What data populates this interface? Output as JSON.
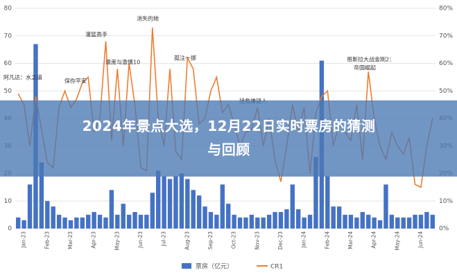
{
  "chart_data": {
    "type": "bar-line",
    "title": "2024年景点大选，12月22日实时票房的猜测与回顾",
    "categories": [
      null,
      "Jan-23",
      null,
      null,
      null,
      "Feb-23",
      null,
      null,
      null,
      "Mar-23",
      null,
      null,
      null,
      "Apr-23",
      null,
      null,
      null,
      "May-23",
      null,
      null,
      null,
      "Jun-23",
      null,
      null,
      null,
      "Jul-23",
      null,
      null,
      null,
      "Aug-23",
      null,
      null,
      null,
      "Sep-23",
      null,
      null,
      null,
      "Oct-23",
      null,
      null,
      null,
      "Nov-23",
      null,
      null,
      null,
      "Dec-23",
      null,
      null,
      null,
      "Jan-24",
      null,
      null,
      null,
      "Feb-24",
      null,
      null,
      null,
      "Mar-24",
      null,
      null,
      null,
      "Apr-24",
      null,
      null,
      null,
      "May-24",
      null,
      null,
      null,
      "Jun-24",
      null,
      null
    ],
    "series": [
      {
        "name": "票房（亿元）",
        "color": "#4472c4",
        "kind": "bar",
        "axis": "y",
        "values": [
          4,
          3,
          16,
          67,
          24,
          10,
          8,
          5,
          4,
          3,
          4,
          4,
          5,
          6,
          5,
          4,
          14,
          5,
          9,
          5,
          6,
          5,
          5,
          13,
          21,
          19,
          18,
          19,
          20,
          18,
          14,
          12,
          8,
          6,
          5,
          16,
          9,
          5,
          4,
          4,
          5,
          4,
          4,
          5,
          6,
          6,
          7,
          16,
          7,
          4,
          5,
          26,
          61,
          19,
          8,
          8,
          5,
          5,
          4,
          6,
          5,
          4,
          3,
          16,
          5,
          4,
          4,
          4,
          5,
          5,
          6,
          5
        ]
      },
      {
        "name": "CR1",
        "color": "#ed7d31",
        "kind": "line",
        "axis": "y2",
        "values": [
          49,
          45,
          30,
          48,
          36,
          24,
          22,
          44,
          50,
          44,
          47,
          53,
          55,
          35,
          40,
          68,
          32,
          58,
          30,
          60,
          45,
          22,
          21,
          73,
          40,
          30,
          58,
          28,
          25,
          62,
          58,
          38,
          40,
          50,
          55,
          42,
          45,
          38,
          30,
          35,
          36,
          44,
          30,
          40,
          25,
          17,
          30,
          45,
          35,
          44,
          20,
          42,
          48,
          50,
          30,
          38,
          35,
          32,
          45,
          25,
          57,
          40,
          30,
          25,
          35,
          30,
          27,
          33,
          16,
          15,
          30,
          40
        ]
      }
    ],
    "ylim": [
      0,
      80
    ],
    "yticks": [
      0,
      10,
      20,
      30,
      40,
      50,
      60,
      70,
      80
    ],
    "y2lim": [
      0,
      80
    ],
    "y2ticks": [
      {
        "value": 0,
        "label": "0%"
      },
      {
        "value": 10,
        "label": "10%"
      },
      {
        "value": 20,
        "label": "20%"
      },
      {
        "value": 30,
        "label": "30%"
      },
      {
        "value": 40,
        "label": "40%"
      },
      {
        "value": 50,
        "label": "50%"
      },
      {
        "value": 60,
        "label": "60%"
      },
      {
        "value": 70,
        "label": "70%"
      },
      {
        "value": 80,
        "label": "80%"
      }
    ],
    "annotations": [
      "阿凡达：水之道",
      "保你平安",
      "灌篮高手",
      "速度与激情10",
      "消失的她",
      "孤注一掷",
      "拯救嫌疑人",
      "哥斯拉大战金刚2：",
      "帝国崛起"
    ]
  }
}
